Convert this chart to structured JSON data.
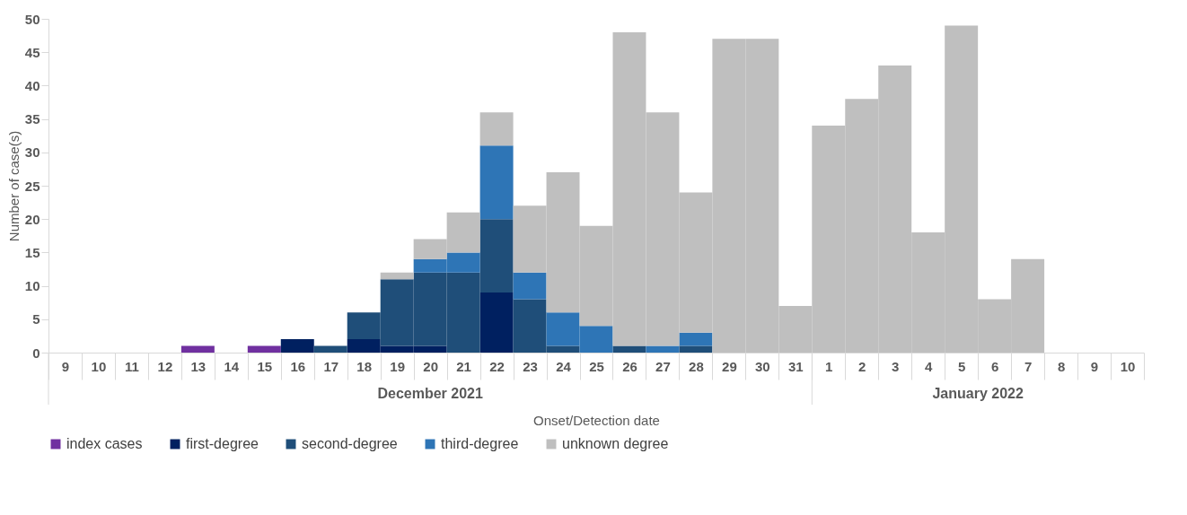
{
  "chart_data": {
    "type": "bar",
    "stacked": true,
    "xlabel": "Onset/Detection date",
    "ylabel": "Number of case(s)",
    "categories": [
      "9",
      "10",
      "11",
      "12",
      "13",
      "14",
      "15",
      "16",
      "17",
      "18",
      "19",
      "20",
      "21",
      "22",
      "23",
      "24",
      "25",
      "26",
      "27",
      "28",
      "29",
      "30",
      "31",
      "1",
      "2",
      "3",
      "4",
      "5",
      "6",
      "7",
      "8",
      "9",
      "10"
    ],
    "series": [
      {
        "name": "index cases",
        "color": "#7030a0",
        "values": [
          null,
          null,
          null,
          null,
          1,
          null,
          1,
          null,
          null,
          null,
          null,
          null,
          null,
          null,
          null,
          null,
          null,
          null,
          null,
          null,
          null,
          null,
          null,
          null,
          null,
          null,
          null,
          null,
          null,
          null,
          null,
          null,
          null
        ]
      },
      {
        "name": "first-degree",
        "color": "#002060",
        "values": [
          null,
          null,
          null,
          null,
          null,
          null,
          null,
          2,
          null,
          2,
          1,
          1,
          null,
          9,
          null,
          null,
          null,
          null,
          null,
          null,
          null,
          null,
          null,
          null,
          null,
          null,
          null,
          null,
          null,
          null,
          null,
          null,
          null
        ]
      },
      {
        "name": "second-degree",
        "color": "#1f4e79",
        "values": [
          null,
          null,
          null,
          null,
          null,
          null,
          null,
          null,
          1,
          4,
          10,
          11,
          12,
          11,
          8,
          1,
          null,
          1,
          null,
          1,
          null,
          null,
          null,
          null,
          null,
          null,
          null,
          null,
          null,
          null,
          null,
          null,
          null
        ]
      },
      {
        "name": "third-degree",
        "color": "#2e75b6",
        "values": [
          null,
          null,
          null,
          null,
          null,
          null,
          null,
          null,
          null,
          null,
          null,
          2,
          3,
          11,
          4,
          5,
          4,
          null,
          1,
          2,
          null,
          null,
          null,
          null,
          null,
          null,
          null,
          null,
          null,
          null,
          null,
          null,
          null
        ]
      },
      {
        "name": "unknown degree",
        "color": "#bfbfbf",
        "values": [
          null,
          null,
          null,
          null,
          null,
          null,
          null,
          null,
          null,
          null,
          1,
          3,
          6,
          5,
          10,
          21,
          15,
          47,
          35,
          21,
          47,
          47,
          7,
          34,
          38,
          43,
          18,
          49,
          8,
          14,
          null,
          null,
          null
        ]
      }
    ],
    "ylim": [
      0,
      50
    ],
    "yticks": [
      0,
      5,
      10,
      15,
      20,
      25,
      30,
      35,
      40,
      45,
      50
    ],
    "annotations": [
      "December 2021",
      "January 2022"
    ],
    "legend": "bottom"
  }
}
